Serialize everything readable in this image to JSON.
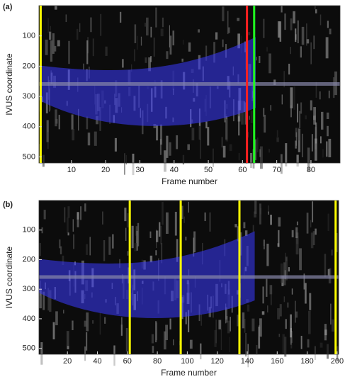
{
  "chart_data": [
    {
      "type": "image",
      "panel_label": "(a)",
      "xlabel": "Frame number",
      "ylabel": "IVUS coordinate",
      "xlim": [
        0.5,
        88.5
      ],
      "ylim": [
        0,
        520
      ],
      "y_inverted": true,
      "xticks": [
        10,
        20,
        30,
        40,
        50,
        60,
        70,
        80
      ],
      "yticks": [
        100,
        200,
        300,
        400,
        500
      ],
      "vlines": [
        {
          "x": 1,
          "color": "#ffff00"
        },
        {
          "x": 61.3,
          "color": "#ff2020"
        },
        {
          "x": 63.4,
          "color": "#20ff20"
        }
      ]
    },
    {
      "type": "image",
      "panel_label": "(b)",
      "xlabel": "Frame number",
      "ylabel": "IVUS coordinate",
      "xlim": [
        1,
        201
      ],
      "ylim": [
        0,
        520
      ],
      "y_inverted": true,
      "xticks": [
        20,
        40,
        60,
        80,
        100,
        120,
        140,
        160,
        180,
        200
      ],
      "yticks": [
        100,
        200,
        300,
        400,
        500
      ],
      "vlines": [
        {
          "x": 61.6,
          "color": "#ffff00"
        },
        {
          "x": 95.6,
          "color": "#ffff00"
        },
        {
          "x": 134.8,
          "color": "#ffff00"
        },
        {
          "x": 199,
          "color": "#ffff00"
        }
      ]
    }
  ]
}
